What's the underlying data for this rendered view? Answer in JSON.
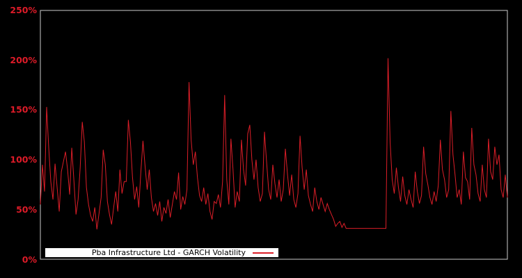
{
  "window": {
    "background": "#000000"
  },
  "colors": {
    "series_line": "#dc1e28",
    "axis_label": "#dd1b28",
    "plot_border": "#cbcbcb",
    "legend_bg": "#ffffff",
    "legend_text": "#000000"
  },
  "legend": {
    "label": "Pba Infrastructure Ltd - GARCH Volatility"
  },
  "chart_data": {
    "type": "line",
    "title": "Pba Infrastructure Ltd - GARCH Volatility",
    "xlabel": "",
    "ylabel": "",
    "ylim": [
      0,
      250
    ],
    "yticks": [
      0,
      50,
      100,
      150,
      200,
      250
    ],
    "ytick_labels": [
      "0%",
      "50%",
      "100%",
      "150%",
      "200%",
      "250%"
    ],
    "xtick_labels": [],
    "grid": false,
    "plot_background": "#000000",
    "legend_position": "inside-bottom-left",
    "unit": "percent",
    "notes": "Noisy daily GARCH volatility series; flat segment near 31% followed by a spike to ~202%",
    "series": [
      {
        "name": "Pba Infrastructure Ltd - GARCH Volatility",
        "values": [
          55,
          95,
          68,
          153,
          112,
          78,
          60,
          96,
          72,
          48,
          88,
          98,
          108,
          90,
          65,
          112,
          80,
          45,
          60,
          92,
          138,
          118,
          72,
          55,
          44,
          38,
          52,
          30,
          46,
          62,
          110,
          95,
          58,
          45,
          35,
          52,
          68,
          48,
          90,
          66,
          78,
          78,
          140,
          118,
          82,
          60,
          73,
          52,
          88,
          119,
          94,
          70,
          90,
          62,
          48,
          56,
          44,
          58,
          38,
          52,
          46,
          60,
          42,
          55,
          68,
          60,
          87,
          50,
          63,
          55,
          70,
          178,
          120,
          95,
          108,
          82,
          64,
          58,
          72,
          55,
          66,
          48,
          40,
          58,
          56,
          65,
          52,
          78,
          165,
          80,
          55,
          121,
          90,
          52,
          68,
          58,
          120,
          90,
          74,
          126,
          135,
          100,
          80,
          100,
          72,
          58,
          66,
          128,
          98,
          70,
          60,
          95,
          76,
          62,
          80,
          58,
          70,
          111,
          85,
          64,
          85,
          60,
          52,
          66,
          124,
          92,
          70,
          90,
          64,
          55,
          48,
          72,
          58,
          50,
          62,
          55,
          48,
          56,
          50,
          45,
          40,
          33,
          36,
          38,
          32,
          36,
          31,
          31,
          31,
          31,
          31,
          31,
          31,
          31,
          31,
          31,
          31,
          31,
          31,
          31,
          31,
          31,
          31,
          31,
          31,
          31,
          202,
          118,
          80,
          66,
          92,
          72,
          58,
          83,
          64,
          55,
          70,
          60,
          52,
          88,
          68,
          56,
          64,
          113,
          86,
          75,
          62,
          55,
          68,
          58,
          74,
          120,
          90,
          80,
          62,
          70,
          149,
          105,
          85,
          62,
          70,
          55,
          108,
          82,
          78,
          60,
          132,
          95,
          85,
          66,
          58,
          95,
          70,
          62,
          121,
          88,
          80,
          113,
          95,
          105,
          70,
          62,
          85,
          62
        ]
      }
    ]
  }
}
